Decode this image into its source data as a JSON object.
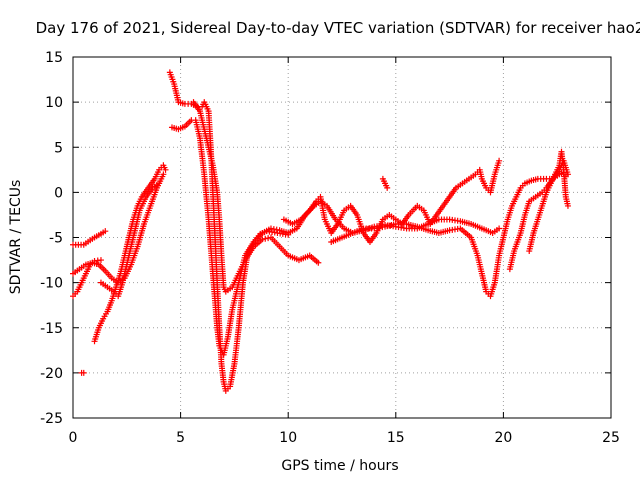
{
  "chart_data": {
    "type": "scatter",
    "title": "Day 176 of 2021, Sidereal Day-to-day VTEC variation (SDTVAR) for receiver hao2",
    "xlabel": "GPS time / hours",
    "ylabel": "SDTVAR / TECUs",
    "xlim": [
      0,
      25
    ],
    "ylim": [
      -25,
      15
    ],
    "xticks": [
      "0",
      "5",
      "10",
      "15",
      "20",
      "25"
    ],
    "yticks": [
      "-25",
      "-20",
      "-15",
      "-10",
      "-5",
      "0",
      "5",
      "10",
      "15"
    ],
    "grid": true,
    "marker": "+",
    "color": "#ff0000",
    "series": [
      {
        "name": "s1",
        "points": [
          [
            0,
            -5.8
          ],
          [
            0.5,
            -5.8
          ],
          [
            0.8,
            -5.3
          ],
          [
            1.0,
            -5.0
          ],
          [
            1.3,
            -4.6
          ],
          [
            1.5,
            -4.3
          ]
        ]
      },
      {
        "name": "s2",
        "points": [
          [
            0,
            -11.5
          ],
          [
            0.2,
            -11.0
          ],
          [
            0.4,
            -10.0
          ],
          [
            0.6,
            -9.0
          ],
          [
            0.8,
            -8.0
          ],
          [
            1.0,
            -7.6
          ],
          [
            1.3,
            -7.5
          ]
        ]
      },
      {
        "name": "s3",
        "points": [
          [
            0,
            -9.0
          ],
          [
            0.3,
            -8.5
          ],
          [
            0.6,
            -8.0
          ],
          [
            0.9,
            -7.8
          ],
          [
            1.2,
            -8.0
          ],
          [
            1.5,
            -8.7
          ],
          [
            1.8,
            -9.5
          ],
          [
            2.1,
            -10.0
          ],
          [
            2.4,
            -9.5
          ],
          [
            2.7,
            -8.0
          ],
          [
            3.0,
            -6.0
          ],
          [
            3.3,
            -3.5
          ],
          [
            3.6,
            -1.5
          ],
          [
            3.9,
            0.5
          ],
          [
            4.2,
            2.0
          ]
        ]
      },
      {
        "name": "s4",
        "points": [
          [
            0.4,
            -20.0
          ],
          [
            0.5,
            -20.0
          ]
        ]
      },
      {
        "name": "s5",
        "points": [
          [
            1.0,
            -16.5
          ],
          [
            1.2,
            -15.0
          ],
          [
            1.4,
            -14.0
          ],
          [
            1.6,
            -13.2
          ],
          [
            1.8,
            -12.0
          ],
          [
            2.0,
            -10.5
          ],
          [
            2.2,
            -9.0
          ],
          [
            2.4,
            -7.0
          ],
          [
            2.6,
            -5.0
          ],
          [
            2.8,
            -3.0
          ],
          [
            3.0,
            -1.5
          ],
          [
            3.2,
            -0.5
          ],
          [
            3.5,
            0.5
          ],
          [
            3.8,
            1.5
          ],
          [
            4.0,
            2.5
          ],
          [
            4.2,
            3.0
          ],
          [
            4.3,
            2.5
          ]
        ]
      },
      {
        "name": "s6",
        "points": [
          [
            1.3,
            -10.0
          ],
          [
            1.6,
            -10.5
          ],
          [
            1.9,
            -11.0
          ],
          [
            2.1,
            -11.5
          ],
          [
            2.3,
            -10.0
          ],
          [
            2.5,
            -8.0
          ],
          [
            2.7,
            -6.0
          ],
          [
            2.9,
            -4.0
          ],
          [
            3.1,
            -2.0
          ],
          [
            3.4,
            -0.5
          ],
          [
            3.7,
            0.5
          ],
          [
            4.0,
            1.0
          ]
        ]
      },
      {
        "name": "s7",
        "points": [
          [
            4.5,
            13.3
          ],
          [
            4.7,
            12.0
          ],
          [
            4.9,
            10.0
          ],
          [
            5.2,
            9.8
          ],
          [
            5.5,
            9.8
          ],
          [
            5.8,
            9.5
          ],
          [
            6.0,
            9.5
          ],
          [
            6.1,
            10.0
          ],
          [
            6.3,
            9.0
          ],
          [
            6.4,
            5.0
          ],
          [
            6.5,
            0.0
          ],
          [
            6.6,
            -5.0
          ],
          [
            6.7,
            -10.0
          ],
          [
            6.8,
            -15.0
          ],
          [
            6.9,
            -19.0
          ],
          [
            7.0,
            -21.0
          ],
          [
            7.1,
            -22.0
          ],
          [
            7.3,
            -21.5
          ],
          [
            7.5,
            -19.0
          ],
          [
            7.7,
            -15.0
          ],
          [
            7.9,
            -10.0
          ],
          [
            8.1,
            -7.0
          ],
          [
            8.4,
            -5.5
          ],
          [
            8.7,
            -4.6
          ],
          [
            9.0,
            -4.3
          ],
          [
            9.5,
            -4.5
          ],
          [
            10.0,
            -4.7
          ]
        ]
      },
      {
        "name": "s8",
        "points": [
          [
            4.6,
            7.2
          ],
          [
            4.9,
            7.0
          ],
          [
            5.2,
            7.3
          ],
          [
            5.5,
            8.0
          ],
          [
            5.7,
            8.0
          ],
          [
            5.9,
            6.0
          ],
          [
            6.1,
            2.0
          ],
          [
            6.3,
            -3.0
          ],
          [
            6.5,
            -9.0
          ],
          [
            6.7,
            -15.0
          ],
          [
            6.8,
            -17.0
          ],
          [
            7.0,
            -18.0
          ],
          [
            7.2,
            -16.0
          ],
          [
            7.4,
            -13.0
          ],
          [
            7.7,
            -10.0
          ],
          [
            8.0,
            -7.0
          ],
          [
            8.4,
            -5.5
          ],
          [
            8.8,
            -4.5
          ],
          [
            9.2,
            -4.0
          ],
          [
            9.6,
            -4.2
          ],
          [
            10.0,
            -4.5
          ],
          [
            10.4,
            -4.0
          ],
          [
            10.8,
            -2.5
          ],
          [
            11.2,
            -1.5
          ],
          [
            11.5,
            -1.0
          ],
          [
            11.8,
            -1.5
          ],
          [
            12.2,
            -3.0
          ],
          [
            12.6,
            -4.0
          ],
          [
            13.0,
            -4.5
          ],
          [
            13.5,
            -4.2
          ],
          [
            14.0,
            -3.8
          ],
          [
            14.5,
            -3.6
          ],
          [
            15.0,
            -3.8
          ],
          [
            15.5,
            -4.0
          ],
          [
            16.0,
            -4.0
          ],
          [
            16.5,
            -3.5
          ],
          [
            17.0,
            -3.0
          ],
          [
            17.5,
            -3.0
          ],
          [
            18.0,
            -3.2
          ],
          [
            18.5,
            -3.5
          ],
          [
            19.0,
            -4.0
          ],
          [
            19.5,
            -4.5
          ],
          [
            19.8,
            -4.0
          ]
        ]
      },
      {
        "name": "s9",
        "points": [
          [
            5.6,
            10.0
          ],
          [
            5.9,
            9.0
          ],
          [
            6.1,
            7.0
          ],
          [
            6.3,
            5.0
          ],
          [
            6.5,
            3.0
          ],
          [
            6.7,
            0.0
          ],
          [
            6.8,
            -3.0
          ],
          [
            6.9,
            -7.0
          ],
          [
            7.0,
            -10.5
          ],
          [
            7.1,
            -11.0
          ],
          [
            7.4,
            -10.5
          ],
          [
            7.7,
            -9.0
          ],
          [
            8.0,
            -7.5
          ],
          [
            8.4,
            -6.0
          ],
          [
            8.8,
            -5.2
          ],
          [
            9.2,
            -5.0
          ],
          [
            9.6,
            -6.0
          ],
          [
            10.0,
            -7.0
          ],
          [
            10.5,
            -7.5
          ],
          [
            11.0,
            -7.0
          ],
          [
            11.4,
            -7.8
          ]
        ]
      },
      {
        "name": "s10",
        "points": [
          [
            9.8,
            -3.0
          ],
          [
            10.2,
            -3.5
          ],
          [
            10.6,
            -3.0
          ],
          [
            11.0,
            -2.0
          ],
          [
            11.3,
            -1.0
          ],
          [
            11.5,
            -0.5
          ],
          [
            11.7,
            -3.0
          ],
          [
            12.0,
            -4.5
          ],
          [
            12.3,
            -3.5
          ],
          [
            12.6,
            -2.0
          ],
          [
            12.9,
            -1.5
          ],
          [
            13.2,
            -2.5
          ],
          [
            13.5,
            -4.5
          ],
          [
            13.8,
            -5.5
          ],
          [
            14.1,
            -4.5
          ],
          [
            14.4,
            -3.0
          ],
          [
            14.7,
            -2.5
          ],
          [
            15.0,
            -3.0
          ],
          [
            15.3,
            -3.5
          ],
          [
            15.6,
            -2.5
          ],
          [
            16.0,
            -1.5
          ],
          [
            16.3,
            -2.0
          ],
          [
            16.6,
            -3.5
          ],
          [
            16.9,
            -2.5
          ],
          [
            17.2,
            -1.5
          ],
          [
            17.5,
            -0.5
          ],
          [
            17.8,
            0.5
          ],
          [
            18.1,
            1.0
          ],
          [
            18.4,
            1.5
          ],
          [
            18.7,
            2.0
          ],
          [
            18.9,
            2.5
          ],
          [
            19.0,
            1.5
          ],
          [
            19.2,
            0.5
          ],
          [
            19.4,
            0.0
          ],
          [
            19.6,
            2.0
          ],
          [
            19.8,
            3.5
          ]
        ]
      },
      {
        "name": "s11",
        "points": [
          [
            12.0,
            -5.5
          ],
          [
            12.5,
            -5.0
          ],
          [
            13.0,
            -4.5
          ],
          [
            13.5,
            -4.0
          ],
          [
            14.0,
            -4.0
          ],
          [
            14.5,
            -3.8
          ],
          [
            15.0,
            -3.5
          ],
          [
            15.5,
            -3.5
          ],
          [
            16.0,
            -3.8
          ],
          [
            16.5,
            -4.2
          ],
          [
            17.0,
            -4.5
          ],
          [
            17.5,
            -4.2
          ],
          [
            18.0,
            -4.0
          ],
          [
            18.5,
            -5.0
          ],
          [
            18.8,
            -7.0
          ],
          [
            19.0,
            -9.0
          ],
          [
            19.2,
            -11.0
          ],
          [
            19.4,
            -11.5
          ],
          [
            19.6,
            -10.0
          ],
          [
            19.8,
            -7.0
          ],
          [
            20.0,
            -5.0
          ],
          [
            20.2,
            -3.0
          ],
          [
            20.4,
            -1.5
          ],
          [
            20.6,
            -0.5
          ],
          [
            20.8,
            0.5
          ],
          [
            21.0,
            1.0
          ],
          [
            21.3,
            1.3
          ],
          [
            21.6,
            1.5
          ],
          [
            22.0,
            1.5
          ],
          [
            22.3,
            1.5
          ],
          [
            22.6,
            2.0
          ],
          [
            22.8,
            2.2
          ],
          [
            22.9,
            1.8
          ]
        ]
      },
      {
        "name": "s12",
        "points": [
          [
            14.4,
            1.5
          ],
          [
            14.6,
            0.5
          ]
        ]
      },
      {
        "name": "s13",
        "points": [
          [
            20.3,
            -8.5
          ],
          [
            20.5,
            -6.5
          ],
          [
            20.8,
            -4.5
          ],
          [
            21.0,
            -2.5
          ],
          [
            21.2,
            -1.0
          ],
          [
            21.5,
            -0.5
          ],
          [
            21.8,
            0.0
          ],
          [
            22.0,
            0.5
          ],
          [
            22.3,
            1.5
          ],
          [
            22.6,
            2.5
          ],
          [
            22.8,
            3.5
          ],
          [
            23.0,
            2.0
          ]
        ]
      },
      {
        "name": "s14",
        "points": [
          [
            21.2,
            -6.5
          ],
          [
            21.4,
            -4.5
          ],
          [
            21.6,
            -3.0
          ],
          [
            21.8,
            -1.5
          ],
          [
            22.0,
            0.0
          ],
          [
            22.2,
            1.0
          ],
          [
            22.4,
            2.0
          ],
          [
            22.6,
            3.0
          ],
          [
            22.7,
            4.5
          ],
          [
            22.8,
            2.5
          ],
          [
            22.9,
            -0.5
          ],
          [
            23.0,
            -1.5
          ]
        ]
      }
    ]
  }
}
